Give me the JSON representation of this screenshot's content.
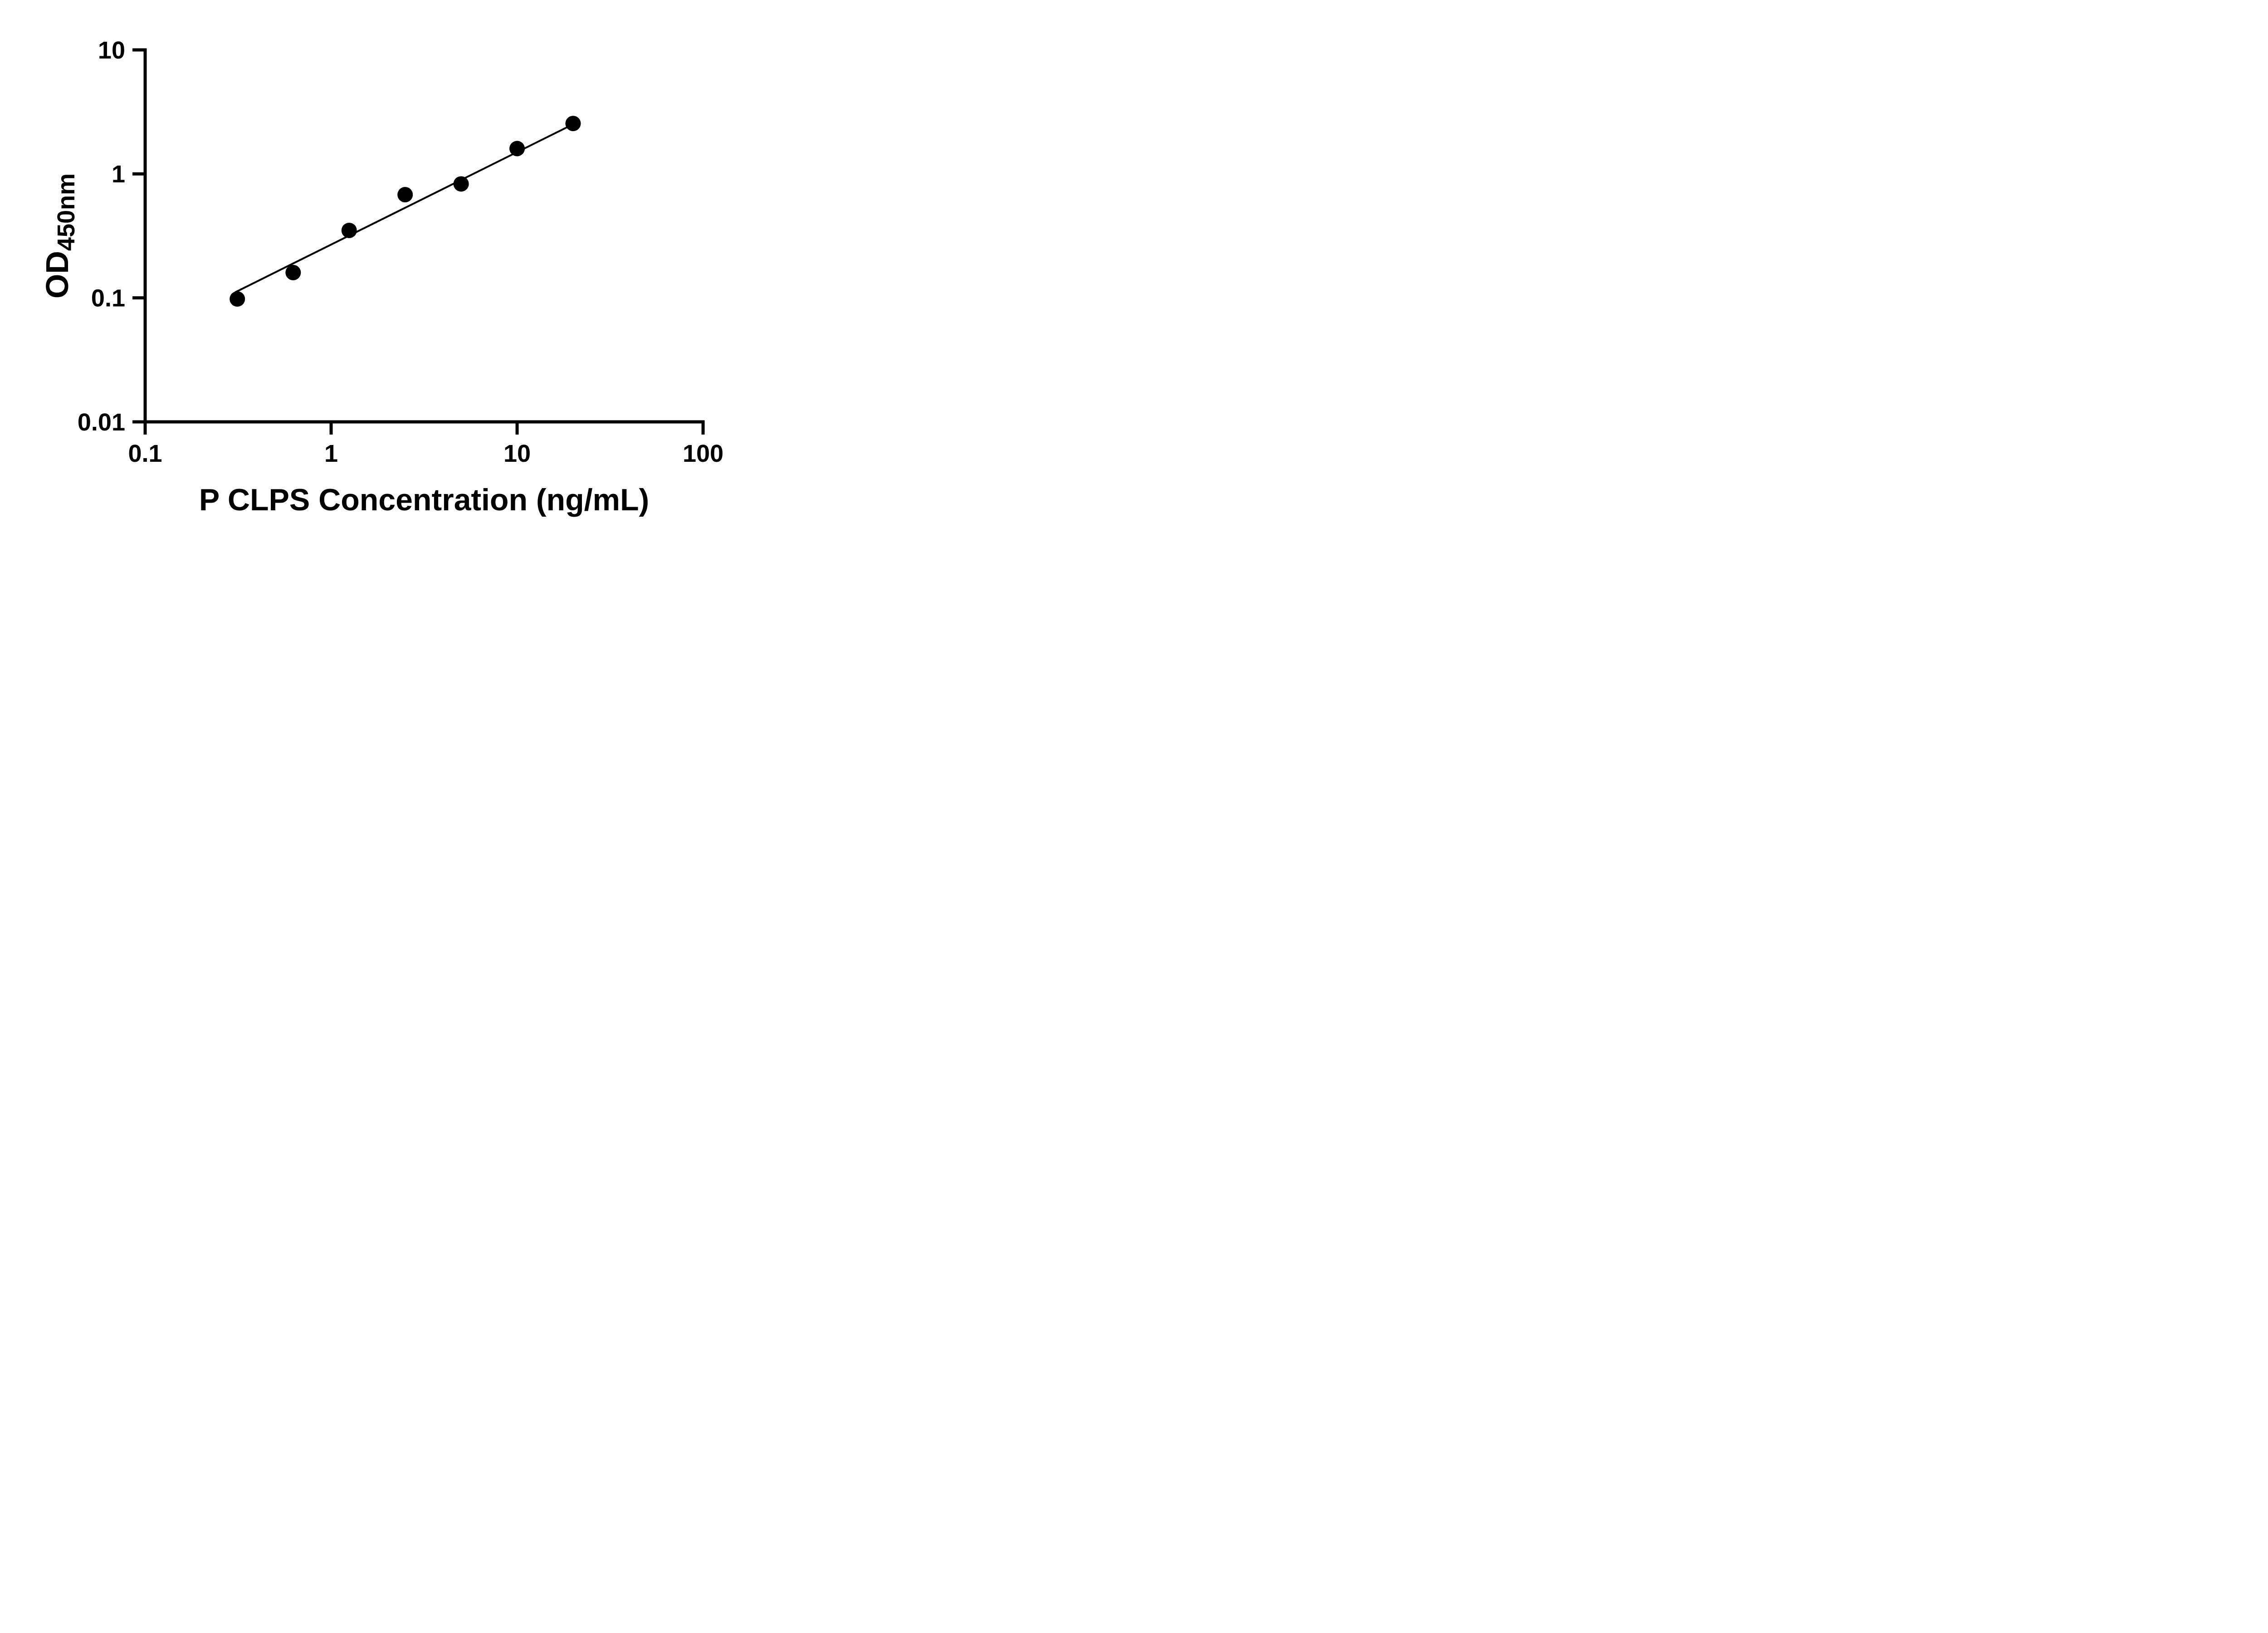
{
  "chart_data": {
    "type": "scatter",
    "title": "",
    "xlabel": "P CLPS Concentration (ng/mL)",
    "ylabel_main": "OD",
    "ylabel_sub": "450nm",
    "x_scale": "log",
    "y_scale": "log",
    "xlim": [
      0.1,
      100
    ],
    "ylim": [
      0.01,
      10
    ],
    "grid": false,
    "legend": "none",
    "x_ticks": [
      {
        "value": 0.1,
        "label": "0.1"
      },
      {
        "value": 1,
        "label": "1"
      },
      {
        "value": 10,
        "label": "10"
      },
      {
        "value": 100,
        "label": "100"
      }
    ],
    "y_ticks": [
      {
        "value": 10,
        "label": "10"
      },
      {
        "value": 1,
        "label": "1"
      },
      {
        "value": 0.1,
        "label": "0.1"
      },
      {
        "value": 0.01,
        "label": "0.01"
      }
    ],
    "points": {
      "x": [
        0.313,
        0.625,
        1.25,
        2.5,
        5,
        10,
        20
      ],
      "y": [
        0.098,
        0.16,
        0.35,
        0.68,
        0.83,
        1.6,
        2.55
      ]
    },
    "fit_line": {
      "x": [
        0.305,
        20.5
      ],
      "y": [
        0.111,
        2.56
      ]
    },
    "colors": {
      "axis": "#000000",
      "marker": "#000000",
      "line": "#000000",
      "background": "#ffffff"
    }
  }
}
